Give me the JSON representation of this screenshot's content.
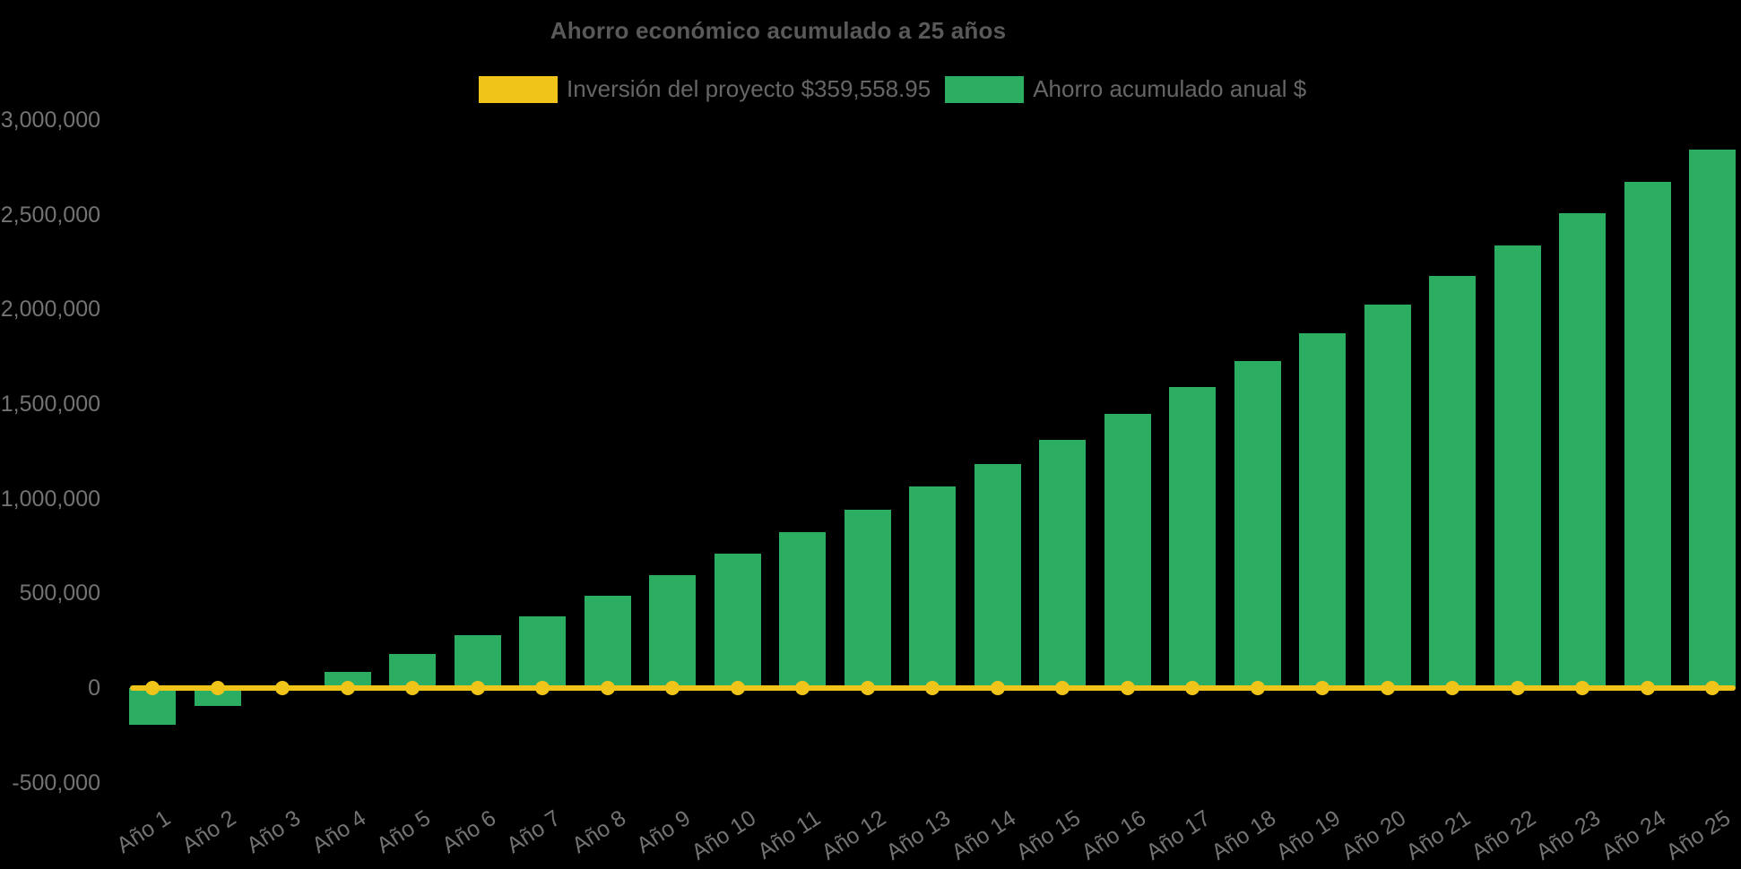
{
  "chart_data": {
    "type": "bar",
    "title": "Ahorro económico acumulado a 25 años",
    "xlabel": "",
    "ylabel": "",
    "categories": [
      "Año 1",
      "Año 2",
      "Año 3",
      "Año 4",
      "Año 5",
      "Año 6",
      "Año 7",
      "Año 8",
      "Año 9",
      "Año 10",
      "Año 11",
      "Año 12",
      "Año 13",
      "Año 14",
      "Año 15",
      "Año 16",
      "Año 17",
      "Año 18",
      "Año 19",
      "Año 20",
      "Año 21",
      "Año 22",
      "Año 23",
      "Año 24",
      "Año 25"
    ],
    "series": [
      {
        "name": "Inversión del proyecto $359,558.95",
        "type": "line",
        "color": "#F0C419",
        "values": [
          0,
          0,
          0,
          0,
          0,
          0,
          0,
          0,
          0,
          0,
          0,
          0,
          0,
          0,
          0,
          0,
          0,
          0,
          0,
          0,
          0,
          0,
          0,
          0,
          0
        ]
      },
      {
        "name": "Ahorro acumulado anual $",
        "type": "bar",
        "color": "#2BAD62",
        "values": [
          -193000,
          -95000,
          -5000,
          85000,
          179000,
          279000,
          379000,
          487000,
          596000,
          710000,
          823000,
          941000,
          1064000,
          1183000,
          1310000,
          1448000,
          1590000,
          1727000,
          1874000,
          2025000,
          2177000,
          2338000,
          2508000,
          2674000,
          2844000
        ]
      }
    ],
    "y_ticks": [
      {
        "label": "3,000,000",
        "value": 3000000
      },
      {
        "label": "2,500,000",
        "value": 2500000
      },
      {
        "label": "2,000,000",
        "value": 2000000
      },
      {
        "label": "1,500,000",
        "value": 1500000
      },
      {
        "label": "1,000,000",
        "value": 1000000
      },
      {
        "label": "500,000",
        "value": 500000
      },
      {
        "label": "0",
        "value": 0
      },
      {
        "label": "-500,000",
        "value": -500000
      }
    ],
    "ylim": [
      -500000,
      3000000
    ],
    "grid": false,
    "legend_position": "top",
    "background_color": "#000000",
    "title_color": "#595959",
    "tick_label_color": "#737373",
    "legend_text_color": "#666666"
  }
}
